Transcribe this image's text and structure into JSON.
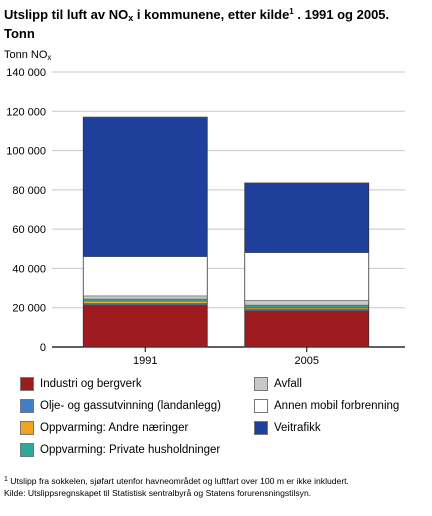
{
  "title": {
    "part1": "Utslipp til luft av NO",
    "sub": "x",
    "part2": " i kommunene, etter kilde",
    "sup": "1",
    "part3": " . 1991 og 2005.",
    "line2": "Tonn"
  },
  "unit_label": {
    "main": "Tonn NO",
    "sub": "x"
  },
  "footnote": {
    "marker": "1",
    "text": " Utslipp fra sokkelen, sjøfart utenfor havneområdet og luftfart over 100 m er ikke inkludert.",
    "source": "Kilde: Utslippsregnskapet til Statistisk sentralbyrå og Statens forurensningstilsyn."
  },
  "chart_data": {
    "type": "bar",
    "stacked": true,
    "categories": [
      "1991",
      "2005"
    ],
    "ylim": [
      0,
      140000
    ],
    "yticks": [
      0,
      20000,
      40000,
      60000,
      80000,
      100000,
      120000,
      140000
    ],
    "ytick_labels": [
      "0",
      "20 000",
      "40 000",
      "60 000",
      "80 000",
      "100 000",
      "120 000",
      "140 000"
    ],
    "grid": true,
    "legend_position": "bottom",
    "series": [
      {
        "name": "Industri og bergverk",
        "color": "#9e1b20",
        "values": [
          21500,
          18500
        ]
      },
      {
        "name": "Olje- og gassutvinning (landanlegg)",
        "color": "#3f7fc7",
        "values": [
          600,
          800
        ]
      },
      {
        "name": "Oppvarming: Andre næringer",
        "color": "#f4a31c",
        "values": [
          1300,
          700
        ]
      },
      {
        "name": "Oppvarming: Private husholdninger",
        "color": "#2ea89b",
        "values": [
          1000,
          1300
        ]
      },
      {
        "name": "Avfall",
        "color": "#c8c8c8",
        "values": [
          1600,
          2400
        ]
      },
      {
        "name": "Annen mobil forbrenning",
        "color": "#ffffff",
        "values": [
          20000,
          24300
        ]
      },
      {
        "name": "Veitrafikk",
        "color": "#1e3f9a",
        "values": [
          71000,
          35500
        ]
      }
    ]
  }
}
